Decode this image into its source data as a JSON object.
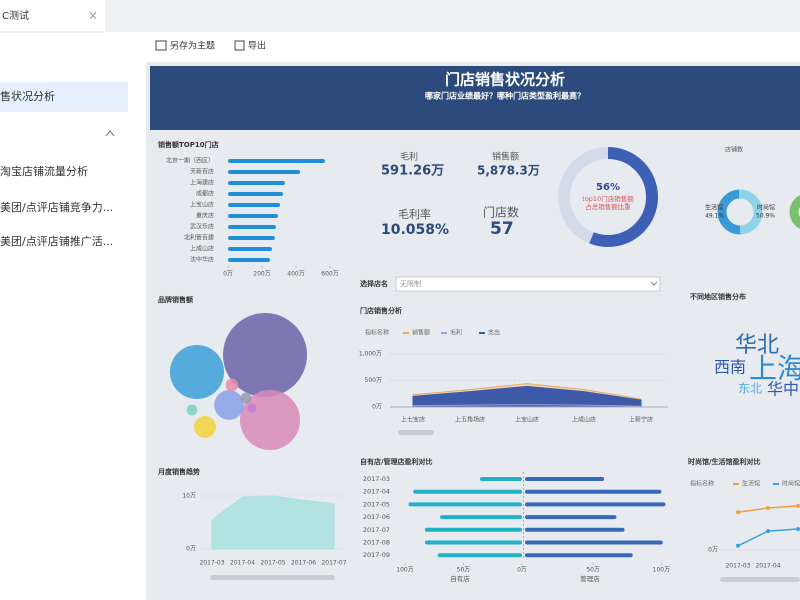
{
  "tab": {
    "title": "C测试",
    "close": "×"
  },
  "sidebar": {
    "items": [
      "售状况分析",
      "淘宝店铺流量分析",
      "美团/点评店铺竞争力...",
      "美团/点评店铺推广活..."
    ]
  },
  "toolbar": {
    "buttons": [
      "另存为主题",
      "导出"
    ]
  },
  "dashboard": {
    "title": "门店销售状况分析",
    "subtitle": "哪家门店业绩最好？哪种门店类型盈利最高？",
    "filter": {
      "label": "选择店名",
      "value": "无限制"
    },
    "kpis": [
      {
        "label": "毛利",
        "value": "591.26万"
      },
      {
        "label": "销售额",
        "value": "5,878.3万"
      },
      {
        "label": "毛利率",
        "value": "10.058%"
      },
      {
        "label": "门店数",
        "value": "57"
      }
    ]
  },
  "chart_data": [
    {
      "type": "hbar",
      "title": "销售额TOP10门店",
      "categories": [
        "北京一期（西区）",
        "天新百店",
        "上海建店",
        "成都店",
        "上宝山店",
        "重庆店",
        "武汉乐店",
        "北利管百建",
        "上成山店",
        "沈中华店"
      ],
      "values": [
        570,
        424,
        335,
        324,
        306,
        294,
        282,
        276,
        259,
        247
      ],
      "color": "#1f8fd8",
      "xlim": [
        0,
        600
      ],
      "xticks": [
        {
          "value": 0,
          "label": "0万"
        },
        {
          "value": 200,
          "label": "200万"
        },
        {
          "value": 400,
          "label": "400万"
        },
        {
          "value": 600,
          "label": "600万"
        }
      ]
    },
    {
      "type": "gauge",
      "values": [
        56
      ],
      "value_labels": [
        "56%"
      ],
      "annotation": [
        "top10门店销售额",
        "占总销售额比重"
      ],
      "color": "#3d5fb5"
    },
    {
      "type": "donut",
      "title": "店铺数",
      "categories": [
        "生活馆",
        "时尚馆"
      ],
      "values": [
        49.1,
        50.9
      ],
      "value_labels": [
        "49.1%",
        "50.9%"
      ],
      "colors": [
        "#3a9ad8",
        "#8fd3e8"
      ]
    },
    {
      "type": "bubble",
      "title": "品牌销售额",
      "values": [
        176,
        73,
        90,
        22,
        12,
        4,
        3,
        3,
        2
      ],
      "colors": [
        "#6b63a8",
        "#3ba0d8",
        "#d88ab8",
        "#8aa0e8",
        "#f3d23a",
        "#e88aa8",
        "#9a9aa8",
        "#7ad0c8",
        "#c07ad0"
      ]
    },
    {
      "type": "area",
      "title": "门店销售分析",
      "legend_title": "指标名称",
      "categories": [
        "上七宝店",
        "上五角场店",
        "上宝山店",
        "上成山店",
        "上新宁店"
      ],
      "series": [
        {
          "name": "销售额",
          "color": "#f0a860",
          "values": [
            230,
            330,
            440,
            330,
            150
          ]
        },
        {
          "name": "毛利",
          "color": "#8aa8d8",
          "values": [
            25,
            35,
            45,
            35,
            15
          ]
        },
        {
          "name": "支出",
          "color": "#3c5aa8",
          "values": [
            200,
            290,
            390,
            290,
            130
          ]
        }
      ],
      "ylim": [
        0,
        1000
      ],
      "yticks": [
        {
          "value": 0,
          "label": "0万"
        },
        {
          "value": 500,
          "label": "500万"
        },
        {
          "value": 1000,
          "label": "1,000万"
        }
      ]
    },
    {
      "type": "wordcloud",
      "title": "不同地区销售分布",
      "categories": [
        "华北",
        "上海",
        "西南",
        "东北",
        "华中"
      ],
      "values": [
        22,
        28,
        16,
        12,
        16
      ],
      "colors": [
        "#2a6ab0",
        "#2e8ad0",
        "#2a5ab0",
        "#5aaadd",
        "#2a5ab0"
      ]
    },
    {
      "type": "area",
      "title": "月度销售趋势",
      "categories": [
        "2017-03",
        "2017-04",
        "2017-05",
        "2017-06",
        "2017-07"
      ],
      "values": [
        5.5,
        9.8,
        10,
        9.2,
        8.5
      ],
      "color": "#a8e2de",
      "ylim": [
        0,
        12
      ],
      "yticks": [
        {
          "value": 0,
          "label": "0万"
        },
        {
          "value": 10,
          "label": "10万"
        }
      ]
    },
    {
      "type": "butterfly",
      "title": "自有店/管理店盈利对比",
      "categories": [
        "2017-03",
        "2017-04",
        "2017-05",
        "2017-06",
        "2017-07",
        "2017-08",
        "2017-09"
      ],
      "series": [
        {
          "name": "自有店",
          "color": "#22b0c8",
          "values": [
            36,
            93,
            97,
            70,
            83,
            83,
            72
          ],
          "xlim": [
            0,
            100
          ],
          "xticks": [
            {
              "value": 100,
              "label": "100万"
            },
            {
              "value": 50,
              "label": "50万"
            },
            {
              "value": 0,
              "label": "0万"
            }
          ]
        },
        {
          "name": "管理店",
          "color": "#3a68b8",
          "values": [
            58,
            100,
            103,
            67,
            73,
            101,
            79
          ],
          "xlim": [
            0,
            110
          ],
          "xticks": [
            {
              "value": 50,
              "label": "50万"
            },
            {
              "value": 100,
              "label": "100万"
            }
          ]
        }
      ]
    },
    {
      "type": "line",
      "title": "时尚馆/生活馆盈利对比",
      "legend_title": "指标名称",
      "categories": [
        "2017-03",
        "2017-04",
        null
      ],
      "series": [
        {
          "name": "生活馆",
          "color": "#f0a040",
          "values": [
            9,
            10,
            10.5
          ]
        },
        {
          "name": "时尚馆",
          "color": "#3ca0d8",
          "values": [
            1,
            4.5,
            5
          ]
        }
      ],
      "ylim": [
        0,
        12
      ],
      "yticks": [
        {
          "value": 0,
          "label": "0万"
        }
      ]
    }
  ]
}
